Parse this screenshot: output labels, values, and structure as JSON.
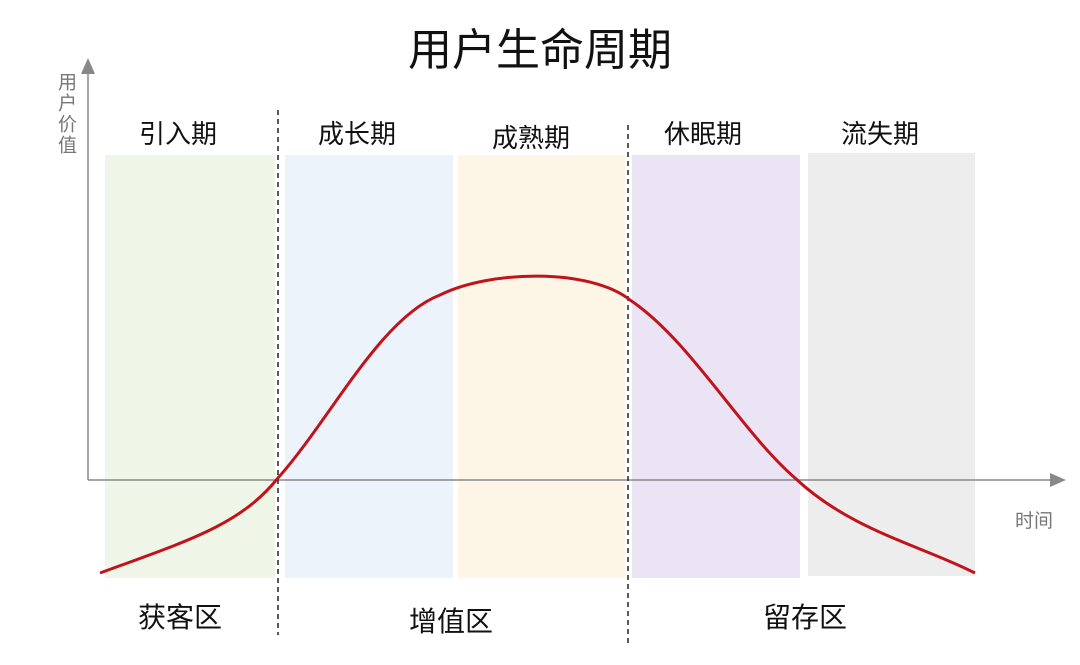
{
  "header": {
    "title": "用户生命周期"
  },
  "axes": {
    "y_label": "用户价值",
    "x_label": "时间"
  },
  "stages": [
    {
      "label": "引入期"
    },
    {
      "label": "成长期"
    },
    {
      "label": "成熟期"
    },
    {
      "label": "休眠期"
    },
    {
      "label": "流失期"
    }
  ],
  "zones": [
    {
      "label": "获客区"
    },
    {
      "label": "增值区"
    },
    {
      "label": "留存区"
    }
  ]
}
